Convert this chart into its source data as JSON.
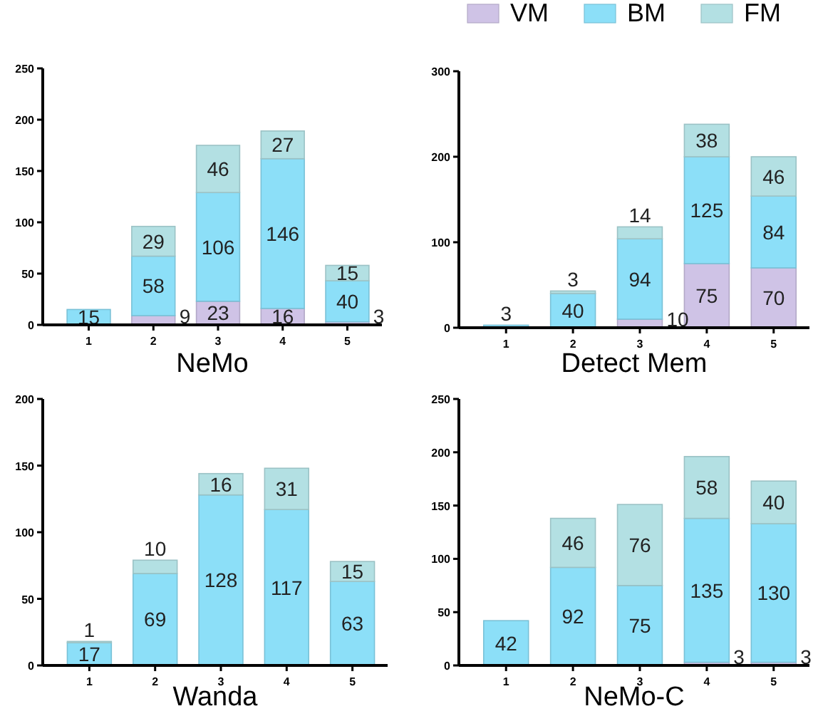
{
  "chart_data": [
    {
      "type": "bar",
      "stacked": true,
      "xlabel": "NeMo",
      "categories": [
        "1",
        "2",
        "3",
        "4",
        "5"
      ],
      "ylim": [
        0,
        250
      ],
      "yticks": [
        0,
        50,
        100,
        150,
        200,
        250
      ],
      "grid": false,
      "legend": false,
      "series": [
        {
          "color": "#cfc3e6",
          "values": [
            0,
            9,
            23,
            16,
            3
          ],
          "value_labels": [
            null,
            "9",
            "23",
            "16",
            "3"
          ]
        },
        {
          "color": "#8cdff8",
          "values": [
            15,
            58,
            106,
            146,
            40
          ],
          "value_labels": [
            "15",
            "58",
            "106",
            "146",
            "40"
          ]
        },
        {
          "color": "#b3e0e3",
          "values": [
            0,
            29,
            46,
            27,
            15
          ],
          "value_labels": [
            null,
            "29",
            "46",
            "27",
            "15"
          ]
        }
      ]
    },
    {
      "type": "bar",
      "stacked": true,
      "xlabel": "Detect Mem",
      "categories": [
        "1",
        "2",
        "3",
        "4",
        "5"
      ],
      "ylim": [
        0,
        300
      ],
      "yticks": [
        0,
        100,
        200,
        300
      ],
      "grid": false,
      "legend": "top right",
      "series": [
        {
          "name": "VM",
          "color": "#cfc3e6",
          "values": [
            0,
            0,
            10,
            75,
            70
          ],
          "value_labels": [
            null,
            null,
            "10",
            "75",
            "70"
          ]
        },
        {
          "name": "BM",
          "color": "#8cdff8",
          "values": [
            3,
            40,
            94,
            125,
            84
          ],
          "value_labels": [
            "3",
            "40",
            "94",
            "125",
            "84"
          ]
        },
        {
          "name": "FM",
          "color": "#b3e0e3",
          "values": [
            0,
            3,
            14,
            38,
            46
          ],
          "value_labels": [
            null,
            "3",
            "14",
            "38",
            "46"
          ]
        }
      ]
    },
    {
      "type": "bar",
      "stacked": true,
      "xlabel": "Wanda",
      "categories": [
        "1",
        "2",
        "3",
        "4",
        "5"
      ],
      "ylim": [
        0,
        200
      ],
      "yticks": [
        0,
        50,
        100,
        150,
        200
      ],
      "grid": false,
      "legend": false,
      "series": [
        {
          "color": "#cfc3e6",
          "values": [
            0,
            0,
            0,
            0,
            0
          ],
          "value_labels": [
            null,
            null,
            null,
            null,
            null
          ]
        },
        {
          "color": "#8cdff8",
          "values": [
            17,
            69,
            128,
            117,
            63
          ],
          "value_labels": [
            "17",
            "69",
            "128",
            "117",
            "63"
          ]
        },
        {
          "color": "#b3e0e3",
          "values": [
            1,
            10,
            16,
            31,
            15
          ],
          "value_labels": [
            "1",
            "10",
            "16",
            "31",
            "15"
          ]
        }
      ]
    },
    {
      "type": "bar",
      "stacked": true,
      "xlabel": "NeMo-C",
      "categories": [
        "1",
        "2",
        "3",
        "4",
        "5"
      ],
      "ylim": [
        0,
        250
      ],
      "yticks": [
        0,
        50,
        100,
        150,
        200,
        250
      ],
      "grid": false,
      "legend": false,
      "series": [
        {
          "color": "#cfc3e6",
          "values": [
            0,
            0,
            0,
            3,
            3
          ],
          "value_labels": [
            null,
            null,
            null,
            "3",
            "3"
          ]
        },
        {
          "color": "#8cdff8",
          "values": [
            42,
            92,
            75,
            135,
            130
          ],
          "value_labels": [
            "42",
            "92",
            "75",
            "135",
            "130"
          ]
        },
        {
          "color": "#b3e0e3",
          "values": [
            0,
            46,
            76,
            58,
            40
          ],
          "value_labels": [
            null,
            "46",
            "76",
            "58",
            "40"
          ]
        }
      ]
    }
  ]
}
